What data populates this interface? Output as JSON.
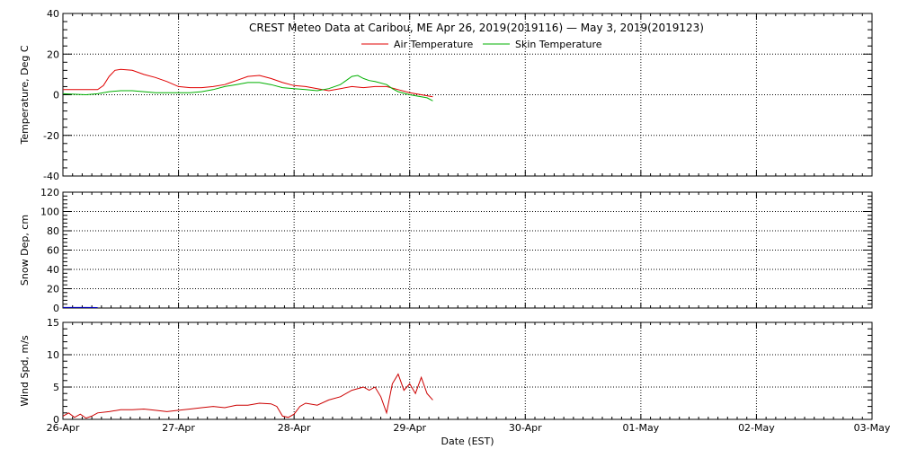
{
  "chart": {
    "title": "CREST Meteo Data at Caribou, ME   Apr 26, 2019(2019116) — May  3, 2019(2019123)",
    "xlabel": "Date (EST)"
  },
  "chart_data": {
    "type": "line",
    "x_axis": {
      "range_days": [
        0,
        7
      ],
      "ticks": [
        "26-Apr",
        "27-Apr",
        "28-Apr",
        "29-Apr",
        "30-Apr",
        "01-May",
        "02-May",
        "03-May"
      ]
    },
    "colors": {
      "air": "#e00000",
      "skin": "#00b000",
      "snow": "#0000cc",
      "wind": "#cc0000",
      "grid": "#000000"
    },
    "panels": [
      {
        "id": "temperature",
        "ylabel": "Temperature, Deg C",
        "ylim": [
          -40,
          40
        ],
        "yticks": [
          -40,
          -20,
          0,
          20,
          40
        ],
        "legend": {
          "position": "top-center"
        },
        "series": [
          {
            "key": "air",
            "name": "Air Temperature",
            "x": [
              0.0,
              0.1,
              0.2,
              0.3,
              0.35,
              0.4,
              0.45,
              0.5,
              0.6,
              0.7,
              0.8,
              0.9,
              1.0,
              1.1,
              1.2,
              1.3,
              1.4,
              1.5,
              1.6,
              1.7,
              1.8,
              1.9,
              2.0,
              2.1,
              2.2,
              2.3,
              2.4,
              2.5,
              2.6,
              2.7,
              2.8,
              2.9,
              3.0,
              3.1,
              3.2
            ],
            "y": [
              2.5,
              2.5,
              2.5,
              2.5,
              4.5,
              9,
              12,
              12.5,
              12,
              10,
              8.5,
              6.5,
              4,
              3.5,
              3.5,
              4,
              5,
              7,
              9,
              9.5,
              8,
              6,
              4.5,
              4,
              3,
              2,
              3,
              4,
              3.5,
              4,
              4,
              2.5,
              1,
              0,
              -1
            ]
          },
          {
            "key": "skin",
            "name": "Skin Temperature",
            "x": [
              0.0,
              0.2,
              0.3,
              0.4,
              0.5,
              0.6,
              0.7,
              0.8,
              0.9,
              1.0,
              1.1,
              1.2,
              1.3,
              1.4,
              1.5,
              1.6,
              1.7,
              1.8,
              1.9,
              2.0,
              2.1,
              2.2,
              2.3,
              2.4,
              2.45,
              2.5,
              2.55,
              2.6,
              2.65,
              2.7,
              2.8,
              2.85,
              2.9,
              3.0,
              3.1,
              3.15,
              3.2
            ],
            "y": [
              0.5,
              0,
              0.5,
              1.5,
              2,
              2,
              1.5,
              1,
              1,
              1,
              1,
              1.5,
              2.5,
              4,
              5,
              6,
              6,
              5,
              3.5,
              3,
              2.5,
              2,
              3,
              5,
              7,
              9,
              9.5,
              8,
              7,
              6.5,
              5,
              3,
              1.5,
              0,
              -1,
              -1.5,
              -3
            ]
          }
        ]
      },
      {
        "id": "snow",
        "ylabel": "Snow Dep, cm",
        "ylim": [
          0,
          120
        ],
        "yticks": [
          0,
          20,
          40,
          60,
          80,
          100,
          120
        ],
        "series": [
          {
            "key": "snow",
            "x": [
              0.0,
              0.1,
              0.2,
              0.3
            ],
            "y": [
              0.6,
              0.6,
              0.6,
              0.5
            ]
          }
        ]
      },
      {
        "id": "wind",
        "ylabel": "Wind Spd, m/s",
        "ylim": [
          0,
          15
        ],
        "yticks": [
          0,
          5,
          10,
          15
        ],
        "series": [
          {
            "key": "wind",
            "x": [
              0.0,
              0.05,
              0.1,
              0.15,
              0.2,
              0.25,
              0.3,
              0.4,
              0.5,
              0.6,
              0.7,
              0.8,
              0.9,
              1.0,
              1.1,
              1.2,
              1.3,
              1.4,
              1.5,
              1.6,
              1.7,
              1.8,
              1.85,
              1.9,
              1.95,
              2.0,
              2.05,
              2.1,
              2.2,
              2.3,
              2.4,
              2.5,
              2.6,
              2.65,
              2.7,
              2.75,
              2.8,
              2.85,
              2.9,
              2.95,
              3.0,
              3.05,
              3.1,
              3.15,
              3.2
            ],
            "y": [
              0.5,
              1,
              0.3,
              0.8,
              0.2,
              0.5,
              1,
              1.2,
              1.5,
              1.5,
              1.6,
              1.4,
              1.2,
              1.4,
              1.6,
              1.8,
              2,
              1.8,
              2.2,
              2.2,
              2.5,
              2.4,
              2,
              0.5,
              0.3,
              0.8,
              2,
              2.5,
              2.2,
              3,
              3.5,
              4.5,
              5,
              4.5,
              5,
              3.5,
              1,
              5.5,
              7,
              4.5,
              5.5,
              4,
              6.5,
              4,
              3
            ]
          }
        ]
      }
    ]
  }
}
